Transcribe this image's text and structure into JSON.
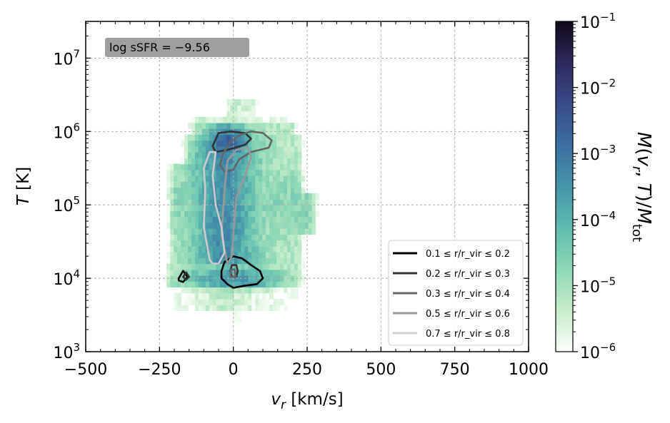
{
  "chart_data": {
    "type": "heatmap",
    "title": "",
    "xlabel": "v_r [km/s]",
    "ylabel": "T [K]",
    "xlim": [
      -500,
      1000
    ],
    "ylim_log10": [
      3,
      7.5
    ],
    "xscale": "linear",
    "yscale": "log",
    "grid": true,
    "xticks": [
      -500,
      -250,
      0,
      250,
      500,
      750,
      1000
    ],
    "xtick_labels": [
      "−500",
      "−250",
      "0",
      "250",
      "500",
      "750",
      "1000"
    ],
    "yticks_log10": [
      3,
      4,
      5,
      6,
      7
    ],
    "ytick_labels": [
      "10^3",
      "10^4",
      "10^5",
      "10^6",
      "10^7"
    ],
    "annotation": "log sSFR = −9.56",
    "colorbar": {
      "label": "M(v_r, T)/M_tot",
      "scale": "log",
      "range_log10": [
        -6,
        -1
      ],
      "tick_labels": [
        "10^−1",
        "10^−2",
        "10^−3",
        "10^−4",
        "10^−5",
        "10^−6"
      ],
      "colormap": [
        "#fbfefb",
        "#c8eccb",
        "#8dd9b7",
        "#5fbcae",
        "#4596a8",
        "#3b6fa0",
        "#3a4a89",
        "#2e2a5c",
        "#100918"
      ]
    },
    "legend": {
      "placement": "lower-right",
      "entries": [
        {
          "label": "0.1 ≤ r/r_vir ≤ 0.2",
          "color": "#000000"
        },
        {
          "label": "0.2 ≤ r/r_vir ≤ 0.3",
          "color": "#333333"
        },
        {
          "label": "0.3 ≤ r/r_vir ≤ 0.4",
          "color": "#666666"
        },
        {
          "label": "0.5 ≤ r/r_vir ≤ 0.6",
          "color": "#999999"
        },
        {
          "label": "0.7 ≤ r/r_vir ≤ 0.8",
          "color": "#cccccc"
        }
      ]
    },
    "contours": [
      {
        "series": "0.1 ≤ r/r_vir ≤ 0.2",
        "color": "#000000",
        "loops": [
          [
            [
              -40,
              4.1
            ],
            [
              -30,
              4.22
            ],
            [
              0,
              4.3
            ],
            [
              30,
              4.27
            ],
            [
              60,
              4.18
            ],
            [
              90,
              4.1
            ],
            [
              100,
              4.0
            ],
            [
              80,
              3.92
            ],
            [
              40,
              3.9
            ],
            [
              0,
              3.87
            ],
            [
              -20,
              3.92
            ],
            [
              -40,
              4.0
            ]
          ],
          [
            [
              -185,
              4.0
            ],
            [
              -170,
              4.1
            ],
            [
              -155,
              4.02
            ],
            [
              -170,
              3.95
            ],
            [
              -185,
              3.97
            ]
          ]
        ]
      },
      {
        "series": "0.2 ≤ r/r_vir ≤ 0.3",
        "color": "#333333",
        "loops": [
          [
            [
              -70,
              5.8
            ],
            [
              -50,
              5.98
            ],
            [
              -10,
              6.0
            ],
            [
              40,
              5.98
            ],
            [
              60,
              5.9
            ],
            [
              40,
              5.82
            ],
            [
              -20,
              5.75
            ],
            [
              -60,
              5.72
            ]
          ],
          [
            [
              -170,
              4.02
            ],
            [
              -160,
              4.08
            ],
            [
              -150,
              4.02
            ],
            [
              -160,
              3.98
            ]
          ],
          [
            [
              -10,
              4.1
            ],
            [
              -5,
              4.18
            ],
            [
              10,
              4.18
            ],
            [
              15,
              4.1
            ],
            [
              10,
              4.02
            ],
            [
              -5,
              4.02
            ]
          ]
        ]
      },
      {
        "series": "0.3 ≤ r/r_vir ≤ 0.4",
        "color": "#666666",
        "loops": [
          [
            [
              -35,
              5.7
            ],
            [
              -10,
              5.85
            ],
            [
              20,
              5.95
            ],
            [
              60,
              6.0
            ],
            [
              100,
              5.98
            ],
            [
              130,
              5.88
            ],
            [
              120,
              5.78
            ],
            [
              60,
              5.72
            ],
            [
              20,
              5.62
            ],
            [
              0,
              5.48
            ],
            [
              -30,
              5.45
            ],
            [
              -45,
              5.55
            ]
          ],
          [
            [
              -10,
              4.02
            ],
            [
              -8,
              4.12
            ],
            [
              5,
              4.12
            ],
            [
              8,
              4.02
            ]
          ]
        ]
      },
      {
        "series": "0.5 ≤ r/r_vir ≤ 0.6",
        "color": "#999999",
        "loops": [
          [
            [
              -20,
              4.2
            ],
            [
              -40,
              4.6
            ],
            [
              -30,
              5.2
            ],
            [
              -20,
              5.6
            ],
            [
              10,
              5.75
            ],
            [
              50,
              5.78
            ],
            [
              60,
              5.65
            ],
            [
              40,
              5.4
            ],
            [
              10,
              5.1
            ],
            [
              0,
              4.6
            ],
            [
              -5,
              4.3
            ]
          ]
        ]
      },
      {
        "series": "0.7 ≤ r/r_vir ≤ 0.8",
        "color": "#cccccc",
        "loops": [
          [
            [
              -80,
              4.25
            ],
            [
              -100,
              4.7
            ],
            [
              -95,
              5.2
            ],
            [
              -100,
              5.5
            ],
            [
              -80,
              5.72
            ],
            [
              -60,
              5.72
            ],
            [
              -70,
              5.4
            ],
            [
              -60,
              5.0
            ],
            [
              -40,
              4.7
            ],
            [
              -30,
              4.35
            ],
            [
              -50,
              4.2
            ],
            [
              -70,
              4.2
            ]
          ]
        ]
      }
    ]
  }
}
